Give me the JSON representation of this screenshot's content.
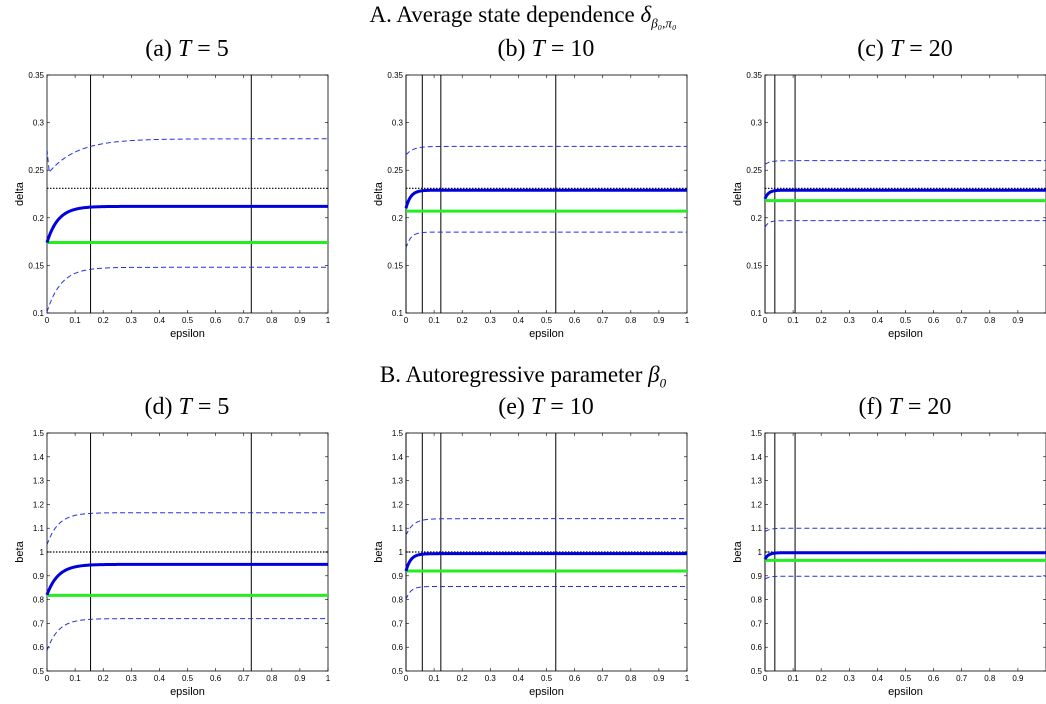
{
  "sections": [
    {
      "prefix": "A. Average state dependence ",
      "symbol": "δ",
      "subscript": "β₀,π₀"
    },
    {
      "prefix": "B. Autoregressive parameter ",
      "symbol": "β",
      "subscript": "0"
    }
  ],
  "panel_titles": [
    {
      "label": "(a) ",
      "tvar": "T",
      "value": " = 5"
    },
    {
      "label": "(b) ",
      "tvar": "T",
      "value": " = 10"
    },
    {
      "label": "(c) ",
      "tvar": "T",
      "value": " = 20"
    },
    {
      "label": "(d) ",
      "tvar": "T",
      "value": " = 5"
    },
    {
      "label": "(e) ",
      "tvar": "T",
      "value": " = 10"
    },
    {
      "label": "(f) ",
      "tvar": "T",
      "value": " = 20"
    }
  ],
  "colors": {
    "estimate": "#0000dd",
    "band": "#2233dd",
    "benchmark": "#22ee22",
    "truth": "#000000",
    "vline": "#000000"
  },
  "chart_data": [
    {
      "type": "line",
      "panel": "a",
      "xlabel": "epsilon",
      "ylabel": "delta",
      "xlim": [
        0,
        1
      ],
      "ylim": [
        0.1,
        0.35
      ],
      "xticks": [
        "0",
        "0.1",
        "0.2",
        "0.3",
        "0.4",
        "0.5",
        "0.6",
        "0.7",
        "0.8",
        "0.9",
        "1"
      ],
      "yticks": [
        "0.1",
        "0.15",
        "0.2",
        "0.25",
        "0.3",
        "0.35"
      ],
      "true_value": 0.231,
      "benchmark": 0.174,
      "vlines": [
        0.155,
        0.727
      ],
      "estimate": {
        "start": 0.174,
        "end": 0.212,
        "rate": 25
      },
      "upper": {
        "start": 0.272,
        "dip": 0.248,
        "end": 0.283,
        "rate": 10
      },
      "lower": {
        "start": 0.101,
        "end": 0.148,
        "rate": 20
      }
    },
    {
      "type": "line",
      "panel": "b",
      "xlabel": "epsilon",
      "ylabel": "delta",
      "xlim": [
        0,
        1
      ],
      "ylim": [
        0.1,
        0.35
      ],
      "xticks": [
        "0",
        "0.1",
        "0.2",
        "0.3",
        "0.4",
        "0.5",
        "0.6",
        "0.7",
        "0.8",
        "0.9",
        "1"
      ],
      "yticks": [
        "0.1",
        "0.15",
        "0.2",
        "0.25",
        "0.3",
        "0.35"
      ],
      "true_value": 0.231,
      "benchmark": 0.207,
      "vlines": [
        0.0,
        0.058,
        0.124,
        0.533
      ],
      "estimate": {
        "start": 0.21,
        "end": 0.229,
        "rate": 60
      },
      "upper": {
        "start": 0.266,
        "dip": null,
        "end": 0.275,
        "rate": 40
      },
      "lower": {
        "start": 0.168,
        "end": 0.185,
        "rate": 60
      }
    },
    {
      "type": "line",
      "panel": "c",
      "xlabel": "epsilon",
      "ylabel": "delta",
      "xlim": [
        0,
        1
      ],
      "ylim": [
        0.1,
        0.35
      ],
      "xticks": [
        "0",
        "0.1",
        "0.2",
        "0.3",
        "0.4",
        "0.5",
        "0.6",
        "0.7",
        "0.8",
        "0.9"
      ],
      "yticks": [
        "0.1",
        "0.15",
        "0.2",
        "0.25",
        "0.3",
        "0.35"
      ],
      "true_value": 0.231,
      "benchmark": 0.218,
      "vlines": [
        0.0,
        0.035,
        0.107
      ],
      "estimate": {
        "start": 0.22,
        "end": 0.229,
        "rate": 80
      },
      "upper": {
        "start": 0.256,
        "dip": null,
        "end": 0.26,
        "rate": 60
      },
      "lower": {
        "start": 0.19,
        "end": 0.197,
        "rate": 80
      }
    },
    {
      "type": "line",
      "panel": "d",
      "xlabel": "epsilon",
      "ylabel": "beta",
      "xlim": [
        0,
        1
      ],
      "ylim": [
        0.5,
        1.5
      ],
      "xticks": [
        "0",
        "0.1",
        "0.2",
        "0.3",
        "0.4",
        "0.5",
        "0.6",
        "0.7",
        "0.8",
        "0.9",
        "1"
      ],
      "yticks": [
        "0.5",
        "0.6",
        "0.7",
        "0.8",
        "0.9",
        "1",
        "1.1",
        "1.2",
        "1.3",
        "1.4",
        "1.5"
      ],
      "true_value": 1.0,
      "benchmark": 0.818,
      "vlines": [
        0.155,
        0.727
      ],
      "estimate": {
        "start": 0.82,
        "end": 0.948,
        "rate": 25
      },
      "upper": {
        "start": 1.03,
        "dip": null,
        "end": 1.165,
        "rate": 25
      },
      "lower": {
        "start": 0.585,
        "end": 0.72,
        "rate": 25
      }
    },
    {
      "type": "line",
      "panel": "e",
      "xlabel": "epsilon",
      "ylabel": "beta",
      "xlim": [
        0,
        1
      ],
      "ylim": [
        0.5,
        1.5
      ],
      "xticks": [
        "0",
        "0.1",
        "0.2",
        "0.3",
        "0.4",
        "0.5",
        "0.6",
        "0.7",
        "0.8",
        "0.9",
        "1"
      ],
      "yticks": [
        "0.5",
        "0.6",
        "0.7",
        "0.8",
        "0.9",
        "1",
        "1.1",
        "1.2",
        "1.3",
        "1.4",
        "1.5"
      ],
      "true_value": 1.0,
      "benchmark": 0.92,
      "vlines": [
        0.0,
        0.058,
        0.124,
        0.533
      ],
      "estimate": {
        "start": 0.92,
        "end": 0.993,
        "rate": 60
      },
      "upper": {
        "start": 1.07,
        "dip": null,
        "end": 1.14,
        "rate": 40
      },
      "lower": {
        "start": 0.8,
        "end": 0.855,
        "rate": 60
      }
    },
    {
      "type": "line",
      "panel": "f",
      "xlabel": "epsilon",
      "ylabel": "beta",
      "xlim": [
        0,
        1
      ],
      "ylim": [
        0.5,
        1.5
      ],
      "xticks": [
        "0",
        "0.1",
        "0.2",
        "0.3",
        "0.4",
        "0.5",
        "0.6",
        "0.7",
        "0.8",
        "0.9"
      ],
      "yticks": [
        "0.5",
        "0.6",
        "0.7",
        "0.8",
        "0.9",
        "1",
        "1.1",
        "1.2",
        "1.3",
        "1.4",
        "1.5"
      ],
      "true_value": 1.0,
      "benchmark": 0.965,
      "vlines": [
        0.0,
        0.035,
        0.107
      ],
      "estimate": {
        "start": 0.97,
        "end": 0.997,
        "rate": 80
      },
      "upper": {
        "start": 1.085,
        "dip": null,
        "end": 1.1,
        "rate": 60
      },
      "lower": {
        "start": 0.885,
        "end": 0.898,
        "rate": 80
      }
    }
  ]
}
